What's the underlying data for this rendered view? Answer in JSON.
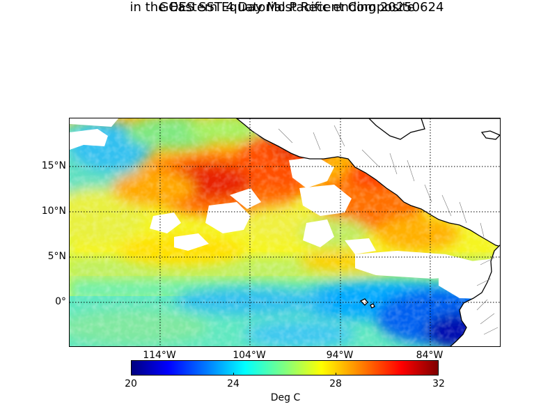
{
  "title": {
    "line1": "GOES SST 4 Day Most Recent Composite",
    "line2": "in the Eastern Equatorial Pacific ending 20250624"
  },
  "map": {
    "lat_labels": [
      "15°N",
      "10°N",
      "5°N",
      "0°"
    ],
    "lon_labels": [
      "114°W",
      "104°W",
      "94°W",
      "84°W"
    ],
    "lat_values": [
      15,
      10,
      5,
      0
    ],
    "lon_values": [
      -114,
      -104,
      -94,
      -84
    ],
    "extent": {
      "lon_min": -123,
      "lon_max": -75.5,
      "lat_min": -5,
      "lat_max": 20
    },
    "land_color": "#ffffff",
    "coast_color": "#000000"
  },
  "colorbar": {
    "title": "Deg C",
    "ticks": [
      "20",
      "24",
      "28",
      "32"
    ],
    "min": 20,
    "max": 32,
    "colormap": "jet"
  }
}
